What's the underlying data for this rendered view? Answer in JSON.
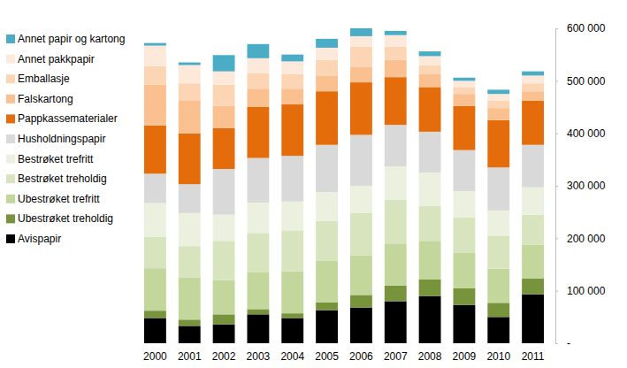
{
  "chart_data": {
    "type": "bar",
    "stacked": true,
    "legend": "left",
    "categories": [
      "2000",
      "2001",
      "2002",
      "2003",
      "2004",
      "2005",
      "2006",
      "2007",
      "2008",
      "2009",
      "2010",
      "2011"
    ],
    "ylim": [
      0,
      600000
    ],
    "yticks": [
      {
        "value": 0,
        "label": "-"
      },
      {
        "value": 100000,
        "label": "100 000"
      },
      {
        "value": 200000,
        "label": "200 000"
      },
      {
        "value": 300000,
        "label": "300 000"
      },
      {
        "value": 400000,
        "label": "400 000"
      },
      {
        "value": 500000,
        "label": "500 000"
      },
      {
        "value": 600000,
        "label": "600 000"
      }
    ],
    "series": [
      {
        "name": "Avispapir",
        "color": "#000000",
        "values": [
          48000,
          33000,
          36000,
          55000,
          48000,
          63000,
          68000,
          80000,
          90000,
          73000,
          50000,
          93000
        ]
      },
      {
        "name": "Ubestrøket treholdig",
        "color": "#77933c",
        "values": [
          14000,
          12000,
          19000,
          10000,
          9000,
          15000,
          24000,
          30000,
          32000,
          32000,
          27000,
          30000
        ]
      },
      {
        "name": "Ubestrøket trefritt",
        "color": "#c3d69b",
        "values": [
          81000,
          80000,
          65000,
          70000,
          80000,
          79000,
          75000,
          80000,
          73000,
          67000,
          65000,
          65000
        ]
      },
      {
        "name": "Bestrøket treholdig",
        "color": "#d7e4bd",
        "values": [
          60000,
          60000,
          75000,
          75000,
          78000,
          76000,
          81000,
          83000,
          67000,
          68000,
          63000,
          57000
        ]
      },
      {
        "name": "Bestrøket trefritt",
        "color": "#ebf1de",
        "values": [
          64000,
          63000,
          50000,
          58000,
          55000,
          55000,
          52000,
          64000,
          63000,
          50000,
          48000,
          52000
        ]
      },
      {
        "name": "Husholdningspapir",
        "color": "#d9d9d9",
        "values": [
          56000,
          55000,
          87000,
          85000,
          87000,
          90000,
          97000,
          79000,
          78000,
          78000,
          82000,
          81000
        ]
      },
      {
        "name": "Pappkassematerialer",
        "color": "#e46c0a",
        "values": [
          92000,
          97000,
          78000,
          97000,
          98000,
          102000,
          100000,
          91000,
          85000,
          84000,
          90000,
          84000
        ]
      },
      {
        "name": "Falskartong",
        "color": "#fac090",
        "values": [
          78000,
          63000,
          42000,
          35000,
          30000,
          30000,
          30000,
          33000,
          25000,
          23000,
          23000,
          18000
        ]
      },
      {
        "name": "Emballasje",
        "color": "#fcd5b5",
        "values": [
          35000,
          32000,
          41000,
          30000,
          28000,
          30000,
          38000,
          25000,
          17000,
          12000,
          14000,
          15000
        ]
      },
      {
        "name": "Annet pakkpapir",
        "color": "#fde9d9",
        "values": [
          39000,
          35000,
          25000,
          28000,
          24000,
          23000,
          20000,
          22000,
          17000,
          13000,
          13000,
          15000
        ]
      },
      {
        "name": "Annet papir og kartong",
        "color": "#4bacc6",
        "values": [
          5000,
          5000,
          31000,
          27000,
          13000,
          17000,
          15000,
          8000,
          9000,
          6000,
          8000,
          8000
        ]
      }
    ]
  }
}
